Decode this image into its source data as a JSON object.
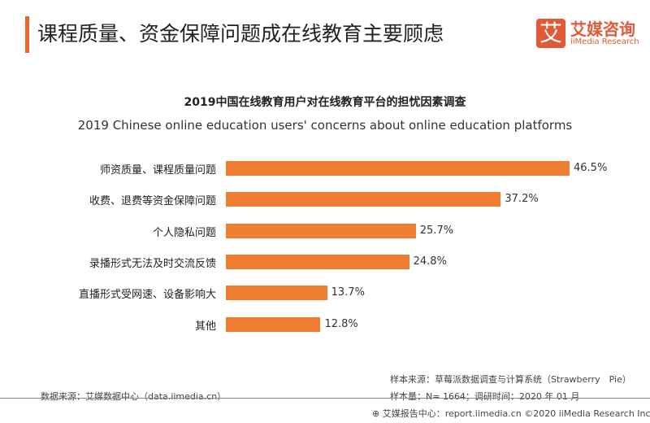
{
  "header": {
    "title": "课程质量、资金保障问题成在线教育主要顾虑",
    "logo_glyph": "艾",
    "brand_cn": "艾媒咨询",
    "brand_en": "iiMedia Research"
  },
  "chart_data": {
    "type": "bar",
    "orientation": "horizontal",
    "title": "2019中国在线教育用户对在线教育平台的担忧因素调查",
    "subtitle": "2019 Chinese online education users' concerns about online education platforms",
    "categories": [
      "师资质量、课程质量问题",
      "收费、退费等资金保障问题",
      "个人隐私问题",
      "录播形式无法及时交流反馈",
      "直播形式受网速、设备影响大",
      "其他"
    ],
    "values": [
      46.5,
      37.2,
      25.7,
      24.8,
      13.7,
      12.8
    ],
    "labels": [
      "46.5%",
      "37.2%",
      "25.7%",
      "24.8%",
      "13.7%",
      "12.8%"
    ],
    "color": "#ef7d32",
    "xlim": [
      0,
      46.5
    ]
  },
  "footer": {
    "source": "数据来源：艾媒数据中心（data.iimedia.cn）",
    "sample_source": "样本来源：草莓派数据调查与计算系统（Strawberry　Pie）",
    "sample_size": "样本量：N= 1664；调研时间：2020 年 01 月",
    "copyright": "艾媒报告中心：report.iimedia.cn  ©2020  iiMedia Research Inc"
  }
}
